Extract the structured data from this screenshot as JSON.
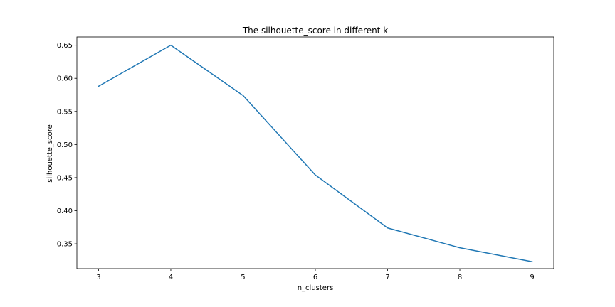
{
  "chart_data": {
    "type": "line",
    "title": "The silhouette_score in different k",
    "xlabel": "n_clusters",
    "ylabel": "silhouette_score",
    "x": [
      3,
      4,
      5,
      6,
      7,
      8,
      9
    ],
    "series": [
      {
        "values": [
          0.588,
          0.65,
          0.574,
          0.454,
          0.374,
          0.344,
          0.323
        ],
        "color": "#1f77b4"
      }
    ],
    "xlim": [
      2.7,
      9.3
    ],
    "ylim": [
      0.3125,
      0.6625
    ],
    "xticks": [
      3,
      4,
      5,
      6,
      7,
      8,
      9
    ],
    "yticks": [
      0.35,
      0.4,
      0.45,
      0.5,
      0.55,
      0.6,
      0.65
    ],
    "ytick_labels": [
      "0.35",
      "0.40",
      "0.45",
      "0.50",
      "0.55",
      "0.60",
      "0.65"
    ],
    "grid": false,
    "legend": false
  }
}
